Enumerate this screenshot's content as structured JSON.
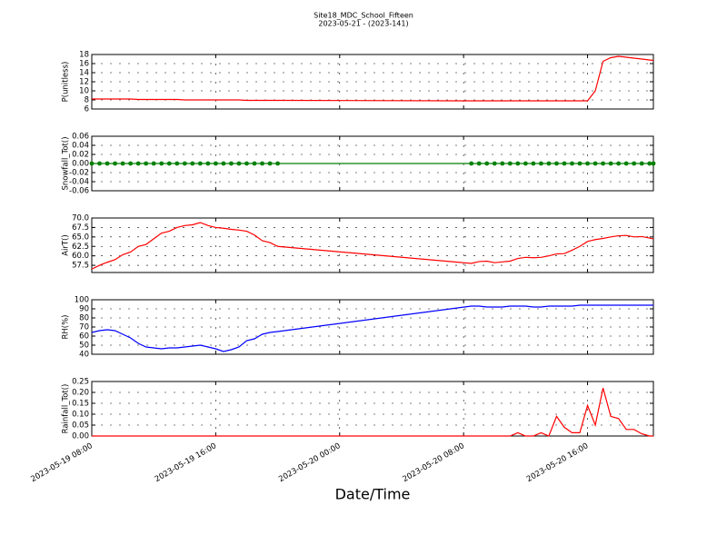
{
  "title": "Site18_MDC_School_Fifteen",
  "subtitle": "2023-05-21 - (2023-141)",
  "shared_x": {
    "xlabel": "Date/Time",
    "xlim": [
      "2023-05-19 08:00",
      "2023-05-20 20:15"
    ],
    "xticks": [
      "2023-05-19 08:00",
      "2023-05-19 16:00",
      "2023-05-20 00:00",
      "2023-05-20 08:00",
      "2023-05-20 16:00"
    ],
    "x": [
      "2023-05-19 08:00",
      "2023-05-19 08:30",
      "2023-05-19 09:00",
      "2023-05-19 09:30",
      "2023-05-19 10:00",
      "2023-05-19 10:30",
      "2023-05-19 11:00",
      "2023-05-19 11:30",
      "2023-05-19 12:00",
      "2023-05-19 12:30",
      "2023-05-19 13:00",
      "2023-05-19 13:30",
      "2023-05-19 14:00",
      "2023-05-19 14:30",
      "2023-05-19 15:00",
      "2023-05-19 15:30",
      "2023-05-19 16:00",
      "2023-05-19 16:30",
      "2023-05-19 17:00",
      "2023-05-19 17:30",
      "2023-05-19 18:00",
      "2023-05-19 18:30",
      "2023-05-19 19:00",
      "2023-05-19 19:30",
      "2023-05-19 20:00",
      "2023-05-20 08:30",
      "2023-05-20 09:00",
      "2023-05-20 09:30",
      "2023-05-20 10:00",
      "2023-05-20 10:30",
      "2023-05-20 11:00",
      "2023-05-20 11:30",
      "2023-05-20 12:00",
      "2023-05-20 12:30",
      "2023-05-20 13:00",
      "2023-05-20 13:30",
      "2023-05-20 14:00",
      "2023-05-20 14:30",
      "2023-05-20 15:00",
      "2023-05-20 15:30",
      "2023-05-20 16:00",
      "2023-05-20 16:30",
      "2023-05-20 17:00",
      "2023-05-20 17:30",
      "2023-05-20 18:00",
      "2023-05-20 18:30",
      "2023-05-20 19:00",
      "2023-05-20 19:30",
      "2023-05-20 20:00",
      "2023-05-20 20:15"
    ]
  },
  "chart_data": [
    {
      "type": "line",
      "ylabel": "P(unitless)",
      "ylim": [
        6,
        18
      ],
      "yticks": [
        6,
        8,
        10,
        12,
        14,
        16,
        18
      ],
      "grid": true,
      "series": [
        {
          "color": "#ff0000",
          "marker": false,
          "values": [
            8.2,
            8.2,
            8.2,
            8.2,
            8.2,
            8.2,
            8.1,
            8.1,
            8.1,
            8.1,
            8.1,
            8.1,
            8.0,
            8.0,
            8.0,
            8.0,
            8.0,
            8.0,
            8.0,
            8.0,
            7.9,
            7.9,
            7.9,
            7.9,
            7.9,
            7.8,
            7.8,
            7.8,
            7.8,
            7.8,
            7.8,
            7.8,
            7.8,
            7.8,
            7.8,
            7.8,
            7.8,
            7.8,
            7.8,
            7.8,
            7.8,
            10.0,
            16.5,
            17.3,
            17.6,
            17.4,
            17.2,
            17.0,
            16.8,
            16.7
          ]
        }
      ]
    },
    {
      "type": "line",
      "ylabel": "Snowfall_Tot()",
      "ylim": [
        -0.06,
        0.06
      ],
      "yticks": [
        {
          "value": -0.06,
          "label": "-0.06"
        },
        {
          "value": -0.04,
          "label": "-0.04"
        },
        {
          "value": -0.02,
          "label": "-0.02"
        },
        {
          "value": 0,
          "label": "0.00"
        },
        {
          "value": 0.02,
          "label": "0.02"
        },
        {
          "value": 0.04,
          "label": "0.04"
        },
        {
          "value": 0.06,
          "label": "0.06"
        }
      ],
      "grid": true,
      "series": [
        {
          "color": "#008000",
          "marker": true,
          "values": [
            0,
            0,
            0,
            0,
            0,
            0,
            0,
            0,
            0,
            0,
            0,
            0,
            0,
            0,
            0,
            0,
            0,
            0,
            0,
            0,
            0,
            0,
            0,
            0,
            0,
            0,
            0,
            0,
            0,
            0,
            0,
            0,
            0,
            0,
            0,
            0,
            0,
            0,
            0,
            0,
            0,
            0,
            0,
            0,
            0,
            0,
            0,
            0,
            0,
            0
          ]
        }
      ]
    },
    {
      "type": "line",
      "ylabel": "AirT()",
      "ylim": [
        55.6,
        70
      ],
      "yticks": [
        57.5,
        {
          "value": 60,
          "label": "60.0"
        },
        62.5,
        {
          "value": 65,
          "label": "65.0"
        },
        67.5,
        {
          "value": 70,
          "label": "70.0"
        }
      ],
      "grid": true,
      "series": [
        {
          "color": "#ff0000",
          "marker": false,
          "values": [
            56.5,
            57.5,
            58.3,
            59,
            60.3,
            61,
            62.5,
            63,
            64.5,
            66,
            66.5,
            67.5,
            68,
            68.2,
            68.8,
            68,
            67.5,
            67.3,
            67,
            66.8,
            66.5,
            65.5,
            64,
            63.5,
            62.5,
            58.0,
            58.5,
            58.6,
            58.2,
            58.4,
            58.6,
            59.3,
            59.6,
            59.5,
            59.6,
            60,
            60.5,
            60.6,
            61.5,
            62.5,
            63.8,
            64.3,
            64.6,
            65,
            65.3,
            65.4,
            65,
            65.1,
            64.7,
            64.5
          ]
        }
      ]
    },
    {
      "type": "line",
      "ylabel": "RH(%)",
      "ylim": [
        40,
        100
      ],
      "yticks": [
        40,
        50,
        60,
        70,
        80,
        90,
        100
      ],
      "grid": true,
      "series": [
        {
          "color": "#0000ff",
          "marker": false,
          "values": [
            64,
            66,
            67,
            66,
            62,
            58,
            52,
            48,
            47,
            46,
            47,
            47,
            48,
            49,
            50,
            48,
            46,
            43,
            45,
            48,
            55,
            57,
            62,
            64,
            65,
            93,
            93,
            92,
            92,
            92,
            93,
            93,
            93,
            92,
            92,
            93,
            93,
            93,
            93,
            94,
            94,
            94,
            94,
            94,
            94,
            94,
            94,
            94,
            94,
            94
          ]
        }
      ]
    },
    {
      "type": "line",
      "ylabel": "Rainfall_Tot()",
      "ylim": [
        0,
        0.25
      ],
      "yticks": [
        {
          "value": 0,
          "label": "0.00"
        },
        {
          "value": 0.05,
          "label": "0.05"
        },
        {
          "value": 0.1,
          "label": "0.10"
        },
        {
          "value": 0.15,
          "label": "0.15"
        },
        {
          "value": 0.2,
          "label": "0.20"
        },
        {
          "value": 0.25,
          "label": "0.25"
        }
      ],
      "grid": true,
      "series": [
        {
          "color": "#ff0000",
          "marker": false,
          "values": [
            0,
            0,
            0,
            0,
            0,
            0,
            0,
            0,
            0,
            0,
            0,
            0,
            0,
            0,
            0,
            0,
            0,
            0,
            0,
            0,
            0,
            0,
            0,
            0,
            0,
            0,
            0,
            0,
            0,
            0,
            0,
            0.015,
            0,
            0,
            0.015,
            0,
            0.09,
            0.04,
            0.015,
            0.015,
            0.14,
            0.05,
            0.22,
            0.09,
            0.08,
            0.03,
            0.03,
            0.01,
            0,
            0
          ]
        }
      ]
    }
  ]
}
